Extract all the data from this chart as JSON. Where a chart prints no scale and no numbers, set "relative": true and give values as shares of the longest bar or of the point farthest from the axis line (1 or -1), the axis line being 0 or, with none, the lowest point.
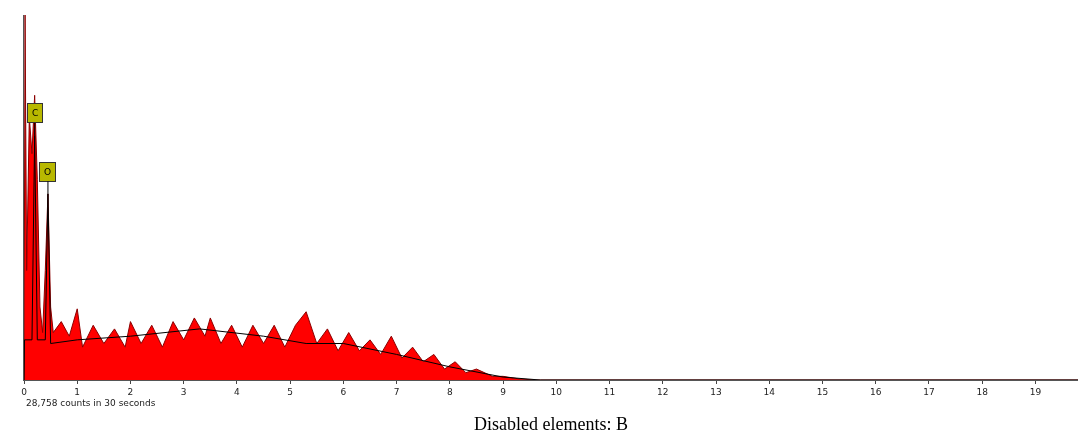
{
  "chart_data": {
    "type": "area",
    "relative": true,
    "xlim": [
      0,
      19.8
    ],
    "xticks": [
      0,
      1,
      2,
      3,
      4,
      5,
      6,
      7,
      8,
      9,
      10,
      11,
      12,
      13,
      14,
      15,
      16,
      17,
      18,
      19
    ],
    "series": [
      {
        "color": "#ff0000",
        "x": [
          0,
          0.02,
          0.05,
          0.1,
          0.15,
          0.2,
          0.25,
          0.3,
          0.35,
          0.4,
          0.45,
          0.5,
          0.55,
          0.7,
          0.85,
          1.0,
          1.1,
          1.3,
          1.5,
          1.7,
          1.9,
          2.0,
          2.2,
          2.4,
          2.6,
          2.8,
          3.0,
          3.2,
          3.4,
          3.5,
          3.7,
          3.9,
          4.1,
          4.3,
          4.5,
          4.7,
          4.9,
          5.1,
          5.3,
          5.5,
          5.7,
          5.9,
          6.1,
          6.3,
          6.5,
          6.7,
          6.9,
          7.1,
          7.3,
          7.5,
          7.7,
          7.9,
          8.1,
          8.3,
          8.5,
          8.8,
          9.0,
          9.3,
          9.6,
          19.8
        ],
        "values": [
          0,
          1.0,
          0.3,
          0.72,
          0.62,
          0.78,
          0.55,
          0.2,
          0.13,
          0.3,
          0.51,
          0.2,
          0.13,
          0.16,
          0.12,
          0.195,
          0.09,
          0.15,
          0.1,
          0.14,
          0.09,
          0.16,
          0.1,
          0.15,
          0.09,
          0.16,
          0.11,
          0.17,
          0.12,
          0.17,
          0.1,
          0.15,
          0.09,
          0.15,
          0.1,
          0.15,
          0.09,
          0.15,
          0.187,
          0.1,
          0.14,
          0.08,
          0.13,
          0.08,
          0.11,
          0.07,
          0.12,
          0.06,
          0.09,
          0.05,
          0.07,
          0.03,
          0.05,
          0.02,
          0.03,
          0.01,
          0.01,
          0.003,
          0,
          0
        ]
      },
      {
        "type": "line",
        "color": "#000000",
        "x": [
          0,
          0.01,
          0.15,
          0.2,
          0.25,
          0.4,
          0.45,
          0.5,
          1,
          2,
          3.3,
          4.5,
          5.3,
          6,
          7,
          8,
          9,
          9.7,
          19.8
        ],
        "values": [
          0,
          0.11,
          0.11,
          0.67,
          0.11,
          0.11,
          0.51,
          0.1,
          0.11,
          0.12,
          0.14,
          0.12,
          0.1,
          0.1,
          0.07,
          0.036,
          0.008,
          0,
          0
        ]
      }
    ],
    "annotations": [
      {
        "text": "C",
        "x": 0.2,
        "y": 0.67
      },
      {
        "text": "O",
        "x": 0.45,
        "y": 0.51
      },
      "28,758 counts in 30 seconds",
      "Disabled elements: B"
    ]
  }
}
